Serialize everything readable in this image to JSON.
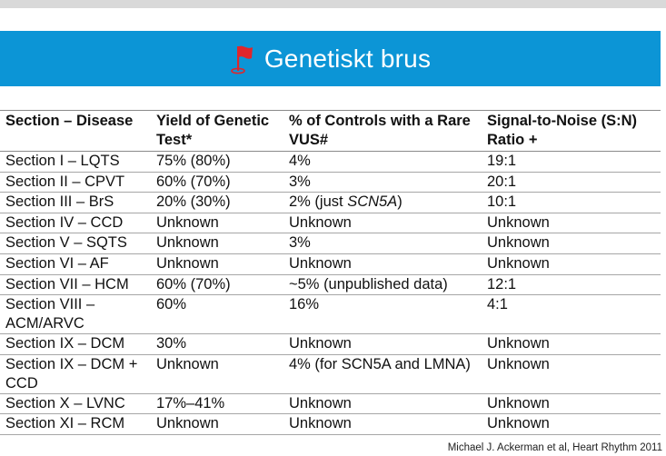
{
  "banner": {
    "title": "Genetiskt brus",
    "icon": "flag-icon",
    "background": "#0c95d6",
    "flag_color": "#e0262b"
  },
  "table": {
    "headers": [
      "Section – Disease",
      "Yield of Genetic Test*",
      "% of Controls with a Rare VUS#",
      "Signal-to-Noise (S:N) Ratio +"
    ],
    "rows": [
      [
        "Section I – LQTS",
        "75% (80%)",
        "4%",
        "19:1"
      ],
      [
        "Section II – CPVT",
        "60% (70%)",
        "3%",
        "20:1"
      ],
      [
        "Section III – BrS",
        "20% (30%)",
        "2% (just ",
        "10:1"
      ],
      [
        "Section IV – CCD",
        "Unknown",
        "Unknown",
        "Unknown"
      ],
      [
        "Section V – SQTS",
        "Unknown",
        "3%",
        "Unknown"
      ],
      [
        "Section VI – AF",
        "Unknown",
        "Unknown",
        "Unknown"
      ],
      [
        "Section VII – HCM",
        "60% (70%)",
        "~5% (unpublished data)",
        "12:1"
      ],
      [
        "Section VIII – ACM/ARVC",
        "60%",
        "16%",
        "4:1"
      ],
      [
        "Section IX – DCM",
        "30%",
        "Unknown",
        "Unknown"
      ],
      [
        "Section IX – DCM + CCD",
        "Unknown",
        "4% (for SCN5A and LMNA)",
        "Unknown"
      ],
      [
        "Section X – LVNC",
        "17%–41%",
        "Unknown",
        "Unknown"
      ],
      [
        "Section XI – RCM",
        "Unknown",
        "Unknown",
        "Unknown"
      ]
    ],
    "brs_gene": "SCN5A",
    "brs_close": ")"
  },
  "credit": "Michael J. Ackerman et al, Heart Rhythm 2011"
}
